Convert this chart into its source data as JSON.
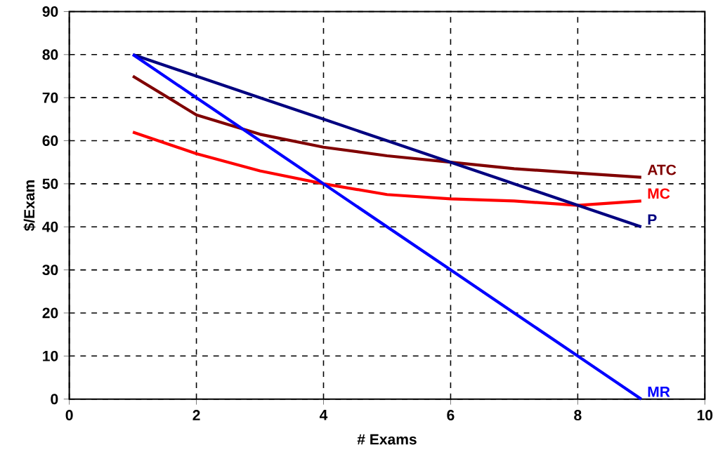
{
  "chart_data": {
    "type": "line",
    "xlabel": "# Exams",
    "ylabel": "$/Exam",
    "xlim": [
      0,
      10
    ],
    "ylim": [
      0,
      90
    ],
    "xticks": [
      0,
      2,
      4,
      6,
      8,
      10
    ],
    "yticks": [
      0,
      10,
      20,
      30,
      40,
      50,
      60,
      70,
      80,
      90
    ],
    "grid": true,
    "legend": false,
    "marker": "none",
    "line_style": "solid",
    "x": [
      1,
      2,
      3,
      4,
      5,
      6,
      7,
      8,
      9
    ],
    "series": [
      {
        "name": "ATC",
        "color": "#800000",
        "values": [
          75,
          66,
          61.5,
          58.5,
          56.5,
          55,
          53.5,
          52.5,
          51.5
        ]
      },
      {
        "name": "MC",
        "color": "#ff0000",
        "values": [
          62,
          57,
          53,
          50,
          47.5,
          46.5,
          46,
          45,
          46
        ]
      },
      {
        "name": "P",
        "color": "#000080",
        "values": [
          80,
          75,
          70,
          65,
          60,
          55,
          50,
          45,
          40
        ]
      },
      {
        "name": "MR",
        "color": "#0000ff",
        "values": [
          80,
          70,
          60,
          50,
          40,
          30,
          20,
          10,
          0
        ]
      }
    ]
  }
}
